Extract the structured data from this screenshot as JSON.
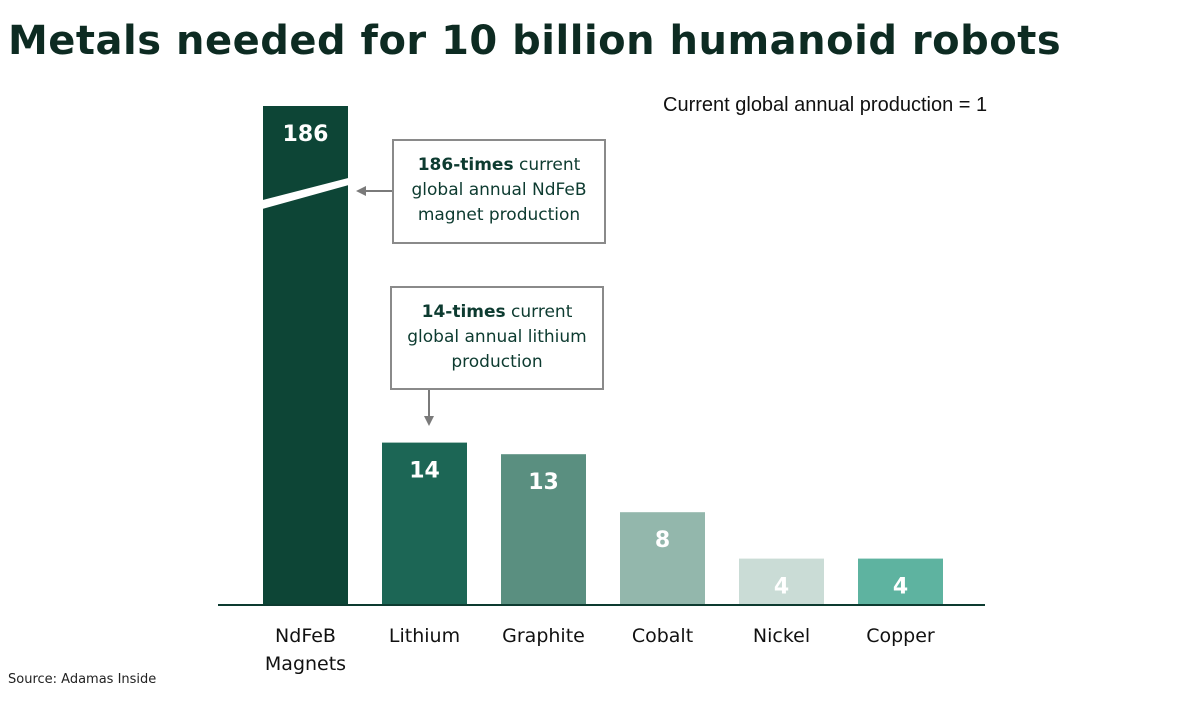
{
  "title": "Metals needed for 10 billion humanoid robots",
  "note": "Current global annual production = 1",
  "source": "Source: Adamas Inside",
  "colors": [
    "#0d4536",
    "#1c6655",
    "#5a8f80",
    "#93b7ac",
    "#cadcd6",
    "#5eb3a0"
  ],
  "callouts": [
    {
      "bold": "186-times",
      "text_1": " current",
      "text_2": "global annual NdFeB",
      "text_3": "magnet production"
    },
    {
      "bold": "14-times",
      "text_1": " current",
      "text_2": "global annual lithium",
      "text_3": "production"
    }
  ],
  "chart_data": {
    "type": "bar",
    "title": "Metals needed for 10 billion humanoid robots",
    "subtitle": "Current global annual production = 1",
    "categories": [
      "NdFeB Magnets",
      "Lithium",
      "Graphite",
      "Cobalt",
      "Nickel",
      "Copper"
    ],
    "category_lines": [
      [
        "NdFeB",
        "Magnets"
      ],
      [
        "Lithium"
      ],
      [
        "Graphite"
      ],
      [
        "Cobalt"
      ],
      [
        "Nickel"
      ],
      [
        "Copper"
      ]
    ],
    "values": [
      186,
      14,
      13,
      8,
      4,
      4
    ],
    "data_labels": [
      "186",
      "14",
      "13",
      "8",
      "4",
      "4"
    ],
    "broken_axis": true,
    "grid": false,
    "xlabel": "",
    "ylabel": ""
  }
}
